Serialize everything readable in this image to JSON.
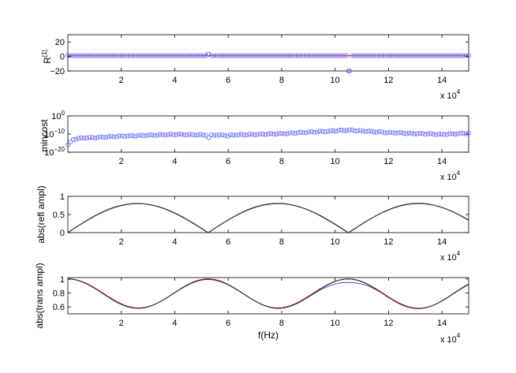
{
  "figure": {
    "background": "#ffffff"
  },
  "chart_data": [
    {
      "type": "scatter",
      "ylabel_base": "R",
      "ylabel_sup": "[1]",
      "xlim": [
        0,
        150000
      ],
      "ylim": [
        -20,
        30
      ],
      "x_ticks": [
        20000,
        40000,
        60000,
        80000,
        100000,
        120000,
        140000
      ],
      "x_tick_labels": [
        "2",
        "4",
        "6",
        "8",
        "10",
        "12",
        "14"
      ],
      "x_multiplier": {
        "base": "x 10",
        "exp": "4"
      },
      "y_ticks": [
        -20,
        0,
        20
      ],
      "y_tick_labels": [
        "−20",
        "0",
        "20"
      ],
      "marker_color": "#6666ff",
      "line_color": "#dd0000",
      "line_value": 1,
      "marker_values": {
        "default": 1,
        "outliers": [
          [
            52500,
            3
          ],
          [
            105000,
            -20
          ]
        ]
      }
    },
    {
      "type": "scatter",
      "ylabel": "mincost",
      "yscale": "log",
      "xlim": [
        0,
        150000
      ],
      "ylim_log10": [
        -20,
        0
      ],
      "x_ticks": [
        20000,
        40000,
        60000,
        80000,
        100000,
        120000,
        140000
      ],
      "x_tick_labels": [
        "2",
        "4",
        "6",
        "8",
        "10",
        "12",
        "14"
      ],
      "x_multiplier": {
        "base": "x 10",
        "exp": "4"
      },
      "y_ticks_log10": [
        -20,
        -10,
        0
      ],
      "y_tick_labels": [
        {
          "base": "10",
          "exp": "−20"
        },
        {
          "base": "10",
          "exp": "−10"
        },
        {
          "base": "10",
          "exp": "0"
        }
      ],
      "marker_color": "#6666ff",
      "curve_log10": [
        [
          0,
          -16
        ],
        [
          2000,
          -13
        ],
        [
          5000,
          -12.2
        ],
        [
          20000,
          -11.2
        ],
        [
          40000,
          -10.2
        ],
        [
          50000,
          -10.5
        ],
        [
          60000,
          -10.6
        ],
        [
          80000,
          -9.8
        ],
        [
          100000,
          -8.2
        ],
        [
          105000,
          -7.8
        ],
        [
          120000,
          -9.2
        ],
        [
          140000,
          -10.2
        ],
        [
          150000,
          -9.5
        ]
      ],
      "dips_log10": [
        [
          52500,
          -12
        ],
        [
          60000,
          -11.2
        ]
      ]
    },
    {
      "type": "line",
      "ylabel": "abs(refl ampl)",
      "xlim": [
        0,
        150000
      ],
      "ylim": [
        0,
        1
      ],
      "x_ticks": [
        20000,
        40000,
        60000,
        80000,
        100000,
        120000,
        140000
      ],
      "x_tick_labels": [
        "2",
        "4",
        "6",
        "8",
        "10",
        "12",
        "14"
      ],
      "x_multiplier": {
        "base": "x 10",
        "exp": "4"
      },
      "y_ticks": [
        0,
        0.5,
        1
      ],
      "y_tick_labels": [
        "0",
        "0.5",
        "1"
      ],
      "peak_value": 0.8,
      "period_hz": 52500,
      "series": [
        {
          "color": "#3355ff"
        },
        {
          "color": "#dd0000"
        },
        {
          "color": "#333333"
        }
      ]
    },
    {
      "type": "line",
      "ylabel": "abs(trans ampl)",
      "xlabel": "f(Hz)",
      "xlim": [
        0,
        150000
      ],
      "ylim": [
        0.5,
        1.02
      ],
      "x_ticks": [
        20000,
        40000,
        60000,
        80000,
        100000,
        120000,
        140000
      ],
      "x_tick_labels": [
        "2",
        "4",
        "6",
        "8",
        "10",
        "12",
        "14"
      ],
      "x_multiplier": {
        "base": "x 10",
        "exp": "4"
      },
      "y_ticks": [
        0.6,
        0.8,
        1
      ],
      "y_tick_labels": [
        "0.6",
        "0.8",
        "1"
      ],
      "min_value": 0.58,
      "blue_peak_near_105000": 0.95,
      "period_hz": 52500,
      "series": [
        {
          "color": "#3355ff"
        },
        {
          "color": "#dd0000"
        },
        {
          "color": "#333333"
        }
      ]
    }
  ]
}
